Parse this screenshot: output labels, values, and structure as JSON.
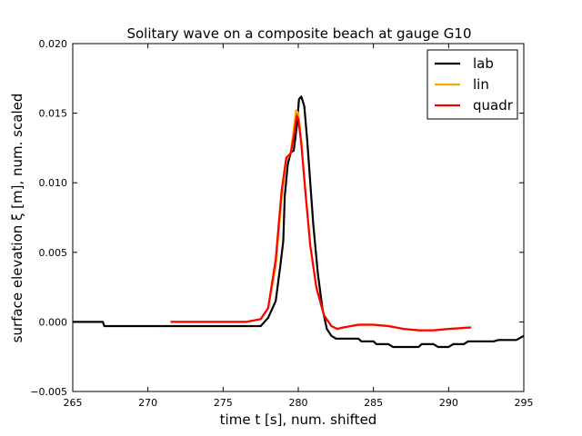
{
  "chart_data": {
    "type": "line",
    "title": "Solitary wave on a composite beach at gauge G10",
    "xlabel": "time  t [s], num. shifted",
    "ylabel": "surface elevation ξ [m], num. scaled",
    "xlim": [
      265,
      295
    ],
    "ylim": [
      -0.005,
      0.02
    ],
    "xticks": [
      265,
      270,
      275,
      280,
      285,
      290,
      295
    ],
    "xtick_labels": [
      "265",
      "270",
      "275",
      "280",
      "285",
      "290",
      "295"
    ],
    "yticks": [
      -0.005,
      0.0,
      0.005,
      0.01,
      0.015,
      0.02
    ],
    "ytick_labels": [
      "−0.005",
      "0.000",
      "0.005",
      "0.010",
      "0.015",
      "0.020"
    ],
    "grid": false,
    "legend_position": "top-right",
    "series": [
      {
        "name": "lab",
        "color": "#000000",
        "x": [
          265.0,
          267.0,
          267.1,
          277.5,
          278.0,
          278.5,
          278.8,
          279.0,
          279.1,
          279.3,
          279.5,
          279.7,
          279.9,
          280.05,
          280.2,
          280.4,
          280.6,
          280.8,
          281.0,
          281.3,
          281.6,
          281.9,
          282.2,
          282.5,
          283.0,
          284.0,
          284.2,
          285.0,
          285.2,
          286.0,
          286.3,
          288.0,
          288.2,
          289.0,
          289.3,
          290.0,
          290.3,
          291.0,
          291.3,
          292.0,
          293.0,
          293.3,
          294.5,
          295.0
        ],
        "y": [
          0.0,
          0.0,
          -0.0003,
          -0.0003,
          0.0003,
          0.0015,
          0.004,
          0.0058,
          0.009,
          0.0113,
          0.0122,
          0.0123,
          0.014,
          0.016,
          0.0162,
          0.0155,
          0.013,
          0.01,
          0.007,
          0.0035,
          0.001,
          -0.0005,
          -0.001,
          -0.0012,
          -0.0012,
          -0.0012,
          -0.0014,
          -0.0014,
          -0.0016,
          -0.0016,
          -0.0018,
          -0.0018,
          -0.0016,
          -0.0016,
          -0.0018,
          -0.0018,
          -0.0016,
          -0.0016,
          -0.0014,
          -0.0014,
          -0.0014,
          -0.0013,
          -0.0013,
          -0.001
        ]
      },
      {
        "name": "lin",
        "color": "#ffa500",
        "x": [
          271.5,
          276.5,
          277.5,
          278.0,
          278.5,
          278.9,
          279.2,
          279.5,
          279.7,
          279.85,
          280.0,
          280.2,
          280.5,
          280.8,
          281.2,
          281.7,
          282.2,
          282.6,
          283.0,
          284.0,
          285.0,
          286.0,
          287.0,
          288.0,
          289.0,
          290.0,
          291.5
        ],
        "y": [
          0.0,
          0.0,
          0.0002,
          0.001,
          0.004,
          0.009,
          0.0116,
          0.0122,
          0.0138,
          0.0152,
          0.015,
          0.013,
          0.009,
          0.0055,
          0.0025,
          0.0005,
          -0.0003,
          -0.0005,
          -0.0004,
          -0.0002,
          -0.0002,
          -0.0003,
          -0.0005,
          -0.0006,
          -0.0006,
          -0.0005,
          -0.0004
        ]
      },
      {
        "name": "quadr",
        "color": "#ff0000",
        "x": [
          271.5,
          276.5,
          277.5,
          278.0,
          278.5,
          278.9,
          279.2,
          279.5,
          279.7,
          279.9,
          280.0,
          280.2,
          280.5,
          280.8,
          281.2,
          281.7,
          282.2,
          282.6,
          283.0,
          284.0,
          285.0,
          286.0,
          287.0,
          288.0,
          289.0,
          290.0,
          291.5
        ],
        "y": [
          0.0,
          0.0,
          0.0002,
          0.001,
          0.0045,
          0.0095,
          0.0118,
          0.0121,
          0.0133,
          0.0148,
          0.0146,
          0.0128,
          0.009,
          0.0055,
          0.0025,
          0.0005,
          -0.0003,
          -0.0005,
          -0.0004,
          -0.0002,
          -0.0002,
          -0.0003,
          -0.0005,
          -0.0006,
          -0.0006,
          -0.0005,
          -0.0004
        ]
      }
    ]
  }
}
